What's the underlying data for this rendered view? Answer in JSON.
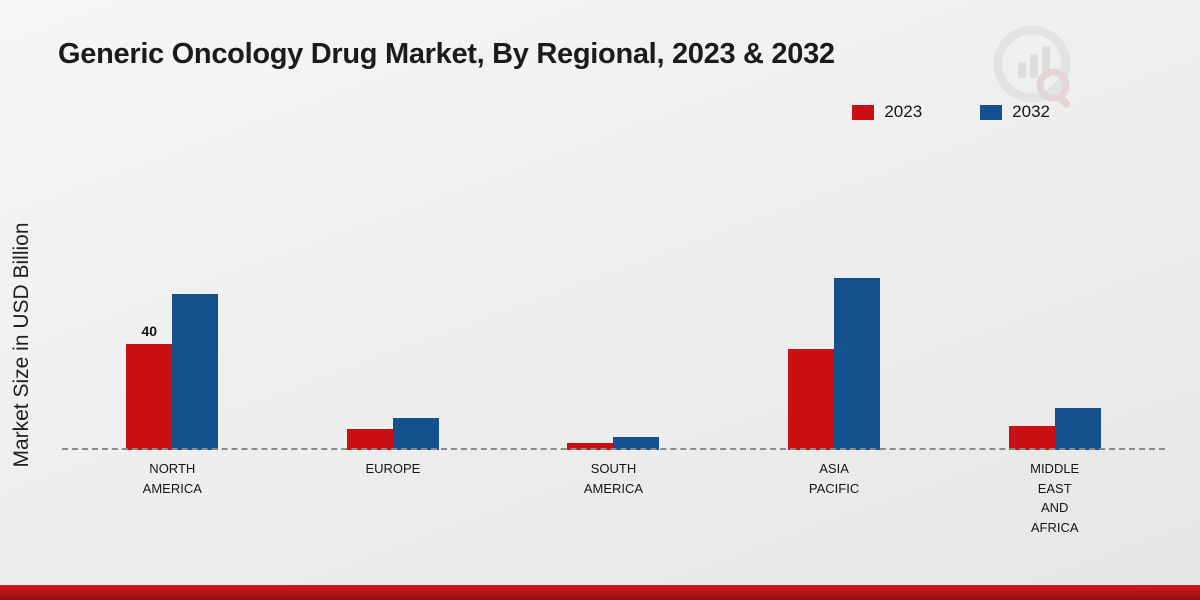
{
  "title": "Generic Oncology Drug Market, By Regional, 2023 & 2032",
  "ylabel": "Market Size in USD Billion",
  "legend": [
    {
      "label": "2023",
      "color": "#c81015"
    },
    {
      "label": "2032",
      "color": "#15508f"
    }
  ],
  "chart_data": {
    "type": "bar",
    "categories": [
      "NORTH\nAMERICA",
      "EUROPE",
      "SOUTH\nAMERICA",
      "ASIA\nPACIFIC",
      "MIDDLE\nEAST\nAND\nAFRICA"
    ],
    "series": [
      {
        "name": "2023",
        "color": "#c81015",
        "values": [
          40,
          8,
          2.5,
          38,
          9
        ]
      },
      {
        "name": "2032",
        "color": "#15508f",
        "values": [
          59,
          12,
          5,
          65,
          16
        ]
      }
    ],
    "annotations": [
      {
        "category_index": 0,
        "series_index": 0,
        "text": "40"
      }
    ],
    "xlabel": "",
    "baseline": "dashed",
    "grid": false,
    "legend_position": "top-right"
  }
}
